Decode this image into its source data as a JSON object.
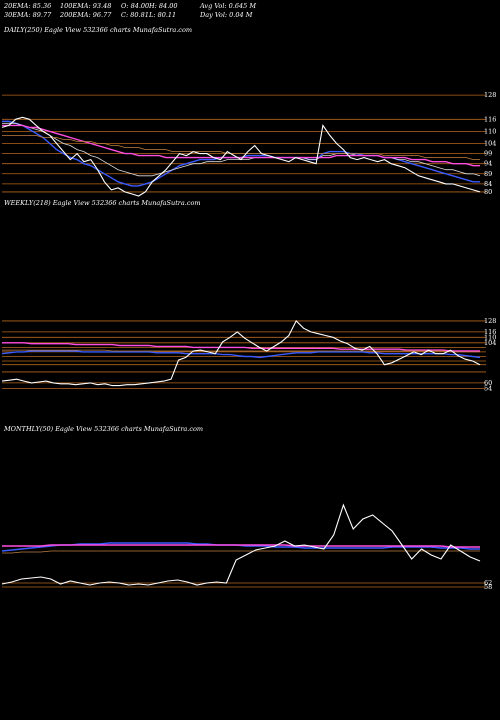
{
  "header": {
    "row1": [
      {
        "text": "20EMA: 85.36"
      },
      {
        "text": "100EMA: 93.48"
      },
      {
        "text": "O: 84.00"
      },
      {
        "text": "H: 84.00"
      },
      {
        "text": "Avg Vol: 0.645 M"
      }
    ],
    "row2": [
      {
        "text": "30EMA: 89.77"
      },
      {
        "text": "200EMA: 96.77"
      },
      {
        "text": "C: 80.81"
      },
      {
        "text": "L: 80.11"
      },
      {
        "text": "Day Vol: 0.04 M"
      }
    ]
  },
  "chart_data": [
    {
      "type": "line",
      "label": "DAILY(250) Eagle  View  532366  charts MunafaSutra.com",
      "ylim": [
        76,
        133
      ],
      "y_ticks": [
        128,
        116,
        110,
        104,
        99,
        94,
        89,
        84,
        80
      ],
      "y_tick_labels": [
        "128",
        "116",
        "110",
        "104",
        "99",
        "94",
        "89",
        "84",
        "80"
      ],
      "series": [
        {
          "role": "price",
          "color": "#ffffff",
          "values": [
            112,
            113,
            116,
            117,
            116,
            113,
            110,
            108,
            104,
            100,
            96,
            99,
            95,
            96,
            91,
            85,
            81,
            82,
            80,
            79,
            78,
            80,
            85,
            88,
            91,
            95,
            99,
            98,
            100,
            99,
            99,
            97,
            96,
            100,
            98,
            96,
            100,
            103,
            99,
            98,
            97,
            96,
            95,
            97,
            96,
            95,
            94,
            113,
            108,
            104,
            101,
            97,
            96,
            97,
            96,
            95,
            96,
            94,
            93,
            92,
            90,
            88,
            87,
            86,
            85,
            84,
            84,
            83,
            82,
            81,
            80
          ]
        },
        {
          "role": "20ema",
          "color": "#3a5bff",
          "values": [
            115,
            115,
            114,
            113,
            111,
            109,
            107,
            104,
            101,
            99,
            97,
            96,
            94,
            93,
            91,
            89,
            87,
            85,
            84,
            83,
            83,
            84,
            85,
            87,
            89,
            91,
            93,
            94,
            95,
            96,
            96,
            96,
            97,
            97,
            97,
            97,
            98,
            98,
            98,
            98,
            97,
            97,
            97,
            97,
            97,
            96,
            96,
            99,
            100,
            100,
            100,
            99,
            99,
            98,
            98,
            98,
            97,
            97,
            96,
            95,
            94,
            93,
            92,
            91,
            90,
            89,
            88,
            87,
            86,
            85,
            85
          ]
        },
        {
          "role": "30ema",
          "color": "#dddddd",
          "values": [
            114,
            114,
            114,
            113,
            112,
            111,
            110,
            108,
            106,
            104,
            103,
            101,
            100,
            98,
            97,
            95,
            93,
            91,
            90,
            89,
            88,
            88,
            88,
            89,
            90,
            91,
            92,
            93,
            94,
            94,
            95,
            95,
            95,
            96,
            96,
            96,
            96,
            97,
            97,
            97,
            97,
            97,
            97,
            97,
            97,
            96,
            96,
            98,
            98,
            99,
            99,
            99,
            98,
            98,
            98,
            98,
            97,
            97,
            96,
            96,
            95,
            95,
            94,
            93,
            92,
            91,
            91,
            90,
            89,
            89,
            88
          ]
        },
        {
          "role": "100ema",
          "color": "#ff4de0",
          "values": [
            113,
            113,
            113,
            113,
            112,
            112,
            111,
            110,
            109,
            108,
            107,
            106,
            105,
            104,
            103,
            102,
            101,
            100,
            99,
            99,
            98,
            98,
            98,
            98,
            97,
            97,
            97,
            97,
            97,
            97,
            97,
            97,
            97,
            97,
            97,
            97,
            97,
            97,
            97,
            97,
            97,
            97,
            97,
            97,
            97,
            97,
            97,
            97,
            97,
            98,
            98,
            98,
            98,
            98,
            98,
            98,
            97,
            97,
            97,
            97,
            96,
            96,
            96,
            95,
            95,
            95,
            94,
            94,
            94,
            93,
            93
          ]
        },
        {
          "role": "200ema",
          "color": "#c08040",
          "values": [
            108,
            108,
            108,
            108,
            108,
            108,
            107,
            107,
            107,
            106,
            106,
            105,
            105,
            105,
            104,
            104,
            103,
            103,
            102,
            102,
            102,
            101,
            101,
            101,
            101,
            100,
            100,
            100,
            100,
            100,
            100,
            100,
            100,
            99,
            99,
            99,
            99,
            99,
            99,
            99,
            99,
            99,
            99,
            99,
            99,
            99,
            99,
            99,
            99,
            99,
            99,
            99,
            99,
            99,
            99,
            99,
            98,
            98,
            98,
            98,
            98,
            98,
            97,
            97,
            97,
            97,
            97,
            97,
            97,
            96,
            96
          ]
        }
      ]
    },
    {
      "type": "line",
      "label": "WEEKLY(218) Eagle  View  532366  charts MunafaSutra.com",
      "ylim": [
        50,
        140
      ],
      "y_ticks": [
        128,
        116,
        110,
        104,
        99,
        94,
        89,
        84,
        80,
        72,
        60,
        54
      ],
      "y_tick_labels": [
        "128",
        "116",
        "110",
        "104",
        "",
        "",
        "",
        "",
        "",
        "",
        "60",
        "54"
      ],
      "series": [
        {
          "role": "price",
          "color": "#ffffff",
          "values": [
            62,
            63,
            64,
            62,
            60,
            61,
            62,
            60,
            59,
            59,
            58,
            59,
            60,
            58,
            59,
            57,
            57,
            58,
            58,
            59,
            60,
            61,
            62,
            64,
            85,
            88,
            95,
            96,
            94,
            92,
            105,
            110,
            116,
            109,
            104,
            99,
            95,
            100,
            105,
            112,
            128,
            120,
            116,
            114,
            112,
            110,
            106,
            103,
            98,
            96,
            100,
            92,
            80,
            82,
            86,
            90,
            94,
            91,
            96,
            92,
            92,
            96,
            90,
            86,
            84,
            80
          ]
        },
        {
          "role": "ema-a",
          "color": "#3a5bff",
          "values": [
            92,
            93,
            94,
            94,
            95,
            95,
            95,
            95,
            95,
            95,
            95,
            94,
            94,
            94,
            94,
            94,
            94,
            94,
            94,
            94,
            94,
            93,
            93,
            93,
            93,
            92,
            92,
            92,
            92,
            92,
            91,
            91,
            90,
            89,
            89,
            88,
            89,
            90,
            91,
            92,
            93,
            93,
            93,
            94,
            94,
            94,
            94,
            94,
            94,
            94,
            93,
            93,
            92,
            92,
            92,
            92,
            92,
            92,
            92,
            92,
            92,
            91,
            91,
            90,
            89,
            88
          ]
        },
        {
          "role": "ema-b",
          "color": "#ff4de0",
          "values": [
            104,
            104,
            104,
            104,
            103,
            103,
            103,
            103,
            103,
            103,
            102,
            102,
            102,
            102,
            102,
            102,
            101,
            101,
            101,
            101,
            101,
            100,
            100,
            100,
            100,
            100,
            99,
            99,
            99,
            99,
            99,
            99,
            99,
            99,
            98,
            98,
            98,
            98,
            98,
            98,
            98,
            98,
            98,
            98,
            98,
            98,
            97,
            97,
            97,
            97,
            97,
            97,
            97,
            97,
            97,
            96,
            96,
            96,
            96,
            96,
            96,
            95,
            95,
            95,
            95,
            95
          ]
        },
        {
          "role": "ema-c",
          "color": "#c08040",
          "values": [
            96,
            96,
            96,
            96,
            96,
            96,
            96,
            96,
            96,
            96,
            96,
            96,
            96,
            96,
            96,
            95,
            95,
            95,
            95,
            95,
            95,
            95,
            95,
            95,
            95,
            95,
            95,
            95,
            95,
            95,
            95,
            95,
            95,
            95,
            95,
            95,
            95,
            95,
            95,
            95,
            95,
            95,
            95,
            95,
            95,
            95,
            95,
            95,
            95,
            95,
            95,
            95,
            95,
            95,
            95,
            95,
            95,
            95,
            95,
            95,
            95,
            94,
            94,
            94,
            94,
            94
          ]
        }
      ]
    },
    {
      "type": "line",
      "label": "MONTHLY(50) Eagle  View  532366  charts MunafaSutra.com",
      "ylim": [
        50,
        150
      ],
      "y_ticks": [
        62,
        58
      ],
      "y_tick_labels": [
        "62",
        "58"
      ],
      "series": [
        {
          "role": "price",
          "color": "#ffffff",
          "values": [
            61,
            63,
            66,
            67,
            68,
            66,
            61,
            64,
            62,
            60,
            62,
            63,
            62,
            60,
            61,
            60,
            62,
            64,
            65,
            63,
            60,
            62,
            63,
            62,
            85,
            90,
            95,
            97,
            99,
            104,
            99,
            100,
            98,
            96,
            110,
            140,
            116,
            126,
            130,
            122,
            114,
            100,
            86,
            96,
            90,
            86,
            100,
            94,
            88,
            84
          ]
        },
        {
          "role": "ema-a",
          "color": "#3a5bff",
          "values": [
            94,
            95,
            96,
            97,
            98,
            99,
            100,
            100,
            101,
            101,
            101,
            102,
            102,
            102,
            102,
            102,
            102,
            102,
            102,
            102,
            101,
            101,
            100,
            100,
            100,
            99,
            99,
            99,
            98,
            98,
            98,
            97,
            97,
            97,
            97,
            97,
            97,
            97,
            97,
            97,
            98,
            98,
            98,
            98,
            98,
            97,
            97,
            97,
            96,
            96
          ]
        },
        {
          "role": "ema-b",
          "color": "#ff4de0",
          "values": [
            99,
            99,
            99,
            99,
            99,
            100,
            100,
            100,
            100,
            100,
            100,
            100,
            100,
            100,
            100,
            100,
            100,
            100,
            100,
            100,
            100,
            100,
            100,
            100,
            100,
            100,
            100,
            100,
            100,
            100,
            99,
            99,
            99,
            99,
            99,
            99,
            99,
            99,
            99,
            99,
            99,
            99,
            99,
            99,
            99,
            99,
            98,
            98,
            98,
            98
          ]
        },
        {
          "role": "ema-c",
          "color": "#c08040",
          "values": [
            92,
            92,
            93,
            93,
            93,
            94,
            94,
            94,
            94,
            94,
            94,
            94,
            94,
            94,
            94,
            94,
            94,
            94,
            94,
            94,
            94,
            94,
            94,
            94,
            94,
            94,
            94,
            94,
            94,
            94,
            94,
            94,
            94,
            94,
            94,
            94,
            94,
            94,
            94,
            94,
            94,
            94,
            94,
            94,
            94,
            94,
            94,
            94,
            94,
            94
          ]
        }
      ]
    }
  ]
}
